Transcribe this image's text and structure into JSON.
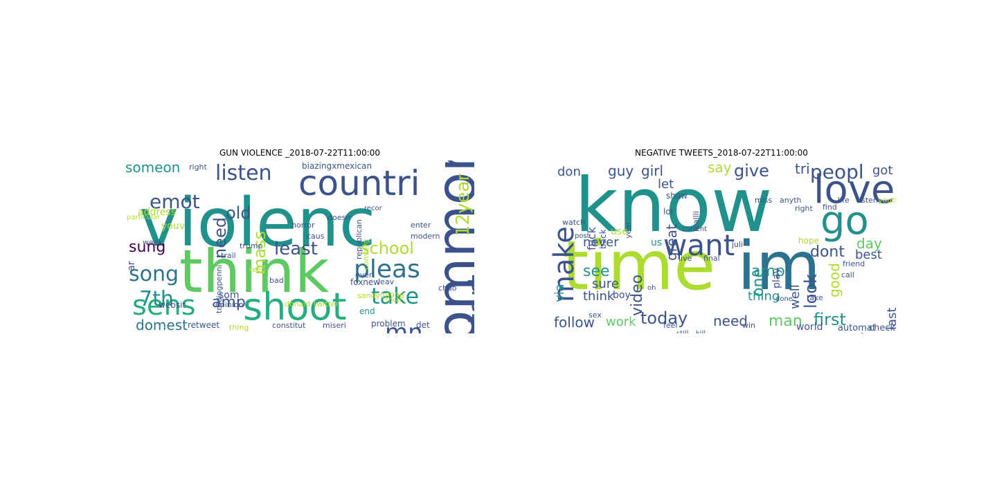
{
  "panels": [
    {
      "title": "GUN VIOLENCE _2018-07-22T11:00:00",
      "words": [
        {
          "t": "violenc",
          "c": "#21918c"
        },
        {
          "t": "think",
          "c": "#5ec962"
        },
        {
          "t": "countri",
          "c": "#3b528b"
        },
        {
          "t": "shoot",
          "c": "#27ad81"
        },
        {
          "t": "sens",
          "c": "#27ad81"
        },
        {
          "t": "common",
          "c": "#3b528b"
        },
        {
          "t": "pleas",
          "c": "#2c728e"
        },
        {
          "t": "take",
          "c": "#21918c"
        },
        {
          "t": "mn",
          "c": "#3b528b"
        },
        {
          "t": "listen",
          "c": "#3b528b"
        },
        {
          "t": "emot",
          "c": "#3b528b"
        },
        {
          "t": "song",
          "c": "#2c728e"
        },
        {
          "t": "school",
          "c": "#addc30"
        },
        {
          "t": "start",
          "c": "#3b528b"
        },
        {
          "t": "12year",
          "c": "#addc30"
        },
        {
          "t": "least",
          "c": "#3b528b"
        },
        {
          "t": "7th",
          "c": "#21918c"
        },
        {
          "t": "amp",
          "c": "#3b528b"
        },
        {
          "t": "sung",
          "c": "#440154"
        },
        {
          "t": "someon",
          "c": "#21918c"
        },
        {
          "t": "old",
          "c": "#3b528b"
        },
        {
          "t": "need",
          "c": "#3b528b"
        },
        {
          "t": "mass",
          "c": "#addc30"
        },
        {
          "t": "domest",
          "c": "#2c728e"
        },
        {
          "t": "address",
          "c": "#addc30"
        },
        {
          "t": "youv",
          "c": "#addc30"
        },
        {
          "t": "biazingxmexican",
          "c": "#3b528b"
        },
        {
          "t": "foxnew",
          "c": "#3b528b"
        },
        {
          "t": "leav",
          "c": "#3b528b"
        },
        {
          "t": "right",
          "c": "#3b528b"
        },
        {
          "t": "trump",
          "c": "#3b528b"
        },
        {
          "t": "problem",
          "c": "#3b528b"
        },
        {
          "t": "det",
          "c": "#3b528b"
        },
        {
          "t": "end",
          "c": "#21918c"
        },
        {
          "t": "som",
          "c": "#3b528b"
        },
        {
          "t": "websit",
          "c": "#3b528b"
        },
        {
          "t": "retweet",
          "c": "#3b528b"
        },
        {
          "t": "constitut",
          "c": "#3b528b"
        },
        {
          "t": "miseri",
          "c": "#3b528b"
        },
        {
          "t": "thing",
          "c": "#addc30"
        },
        {
          "t": "donald",
          "c": "#addc30"
        },
        {
          "t": "twitter",
          "c": "#addc30"
        },
        {
          "t": "opinion",
          "c": "#3b528b"
        },
        {
          "t": "republican",
          "c": "#3b528b"
        },
        {
          "t": "modern",
          "c": "#3b528b"
        },
        {
          "t": "doesn",
          "c": "#3b528b"
        },
        {
          "t": "horror",
          "c": "#3b528b"
        },
        {
          "t": "caus",
          "c": "#3b528b"
        },
        {
          "t": "trail",
          "c": "#3b528b"
        },
        {
          "t": "everi",
          "c": "#3b528b"
        },
        {
          "t": "enter",
          "c": "#3b528b"
        },
        {
          "t": "sandy08906",
          "c": "#addc30"
        },
        {
          "t": "chao",
          "c": "#3b528b"
        },
        {
          "t": "week",
          "c": "#3b528b"
        },
        {
          "t": "tradingpenni",
          "c": "#3b528b"
        },
        {
          "t": "bad",
          "c": "#3b528b"
        },
        {
          "t": "keep",
          "c": "#addc30"
        },
        {
          "t": "recor",
          "c": "#3b528b"
        },
        {
          "t": "soon",
          "c": "#addc30"
        },
        {
          "t": "ar",
          "c": "#3b528b"
        },
        {
          "t": "converg",
          "c": "#addc30"
        },
        {
          "t": "particular",
          "c": "#addc30"
        }
      ]
    },
    {
      "title": "NEGATIVE TWEETS_2018-07-22T11:00:00",
      "words": [
        {
          "t": "know",
          "c": "#21918c"
        },
        {
          "t": "time",
          "c": "#addc30"
        },
        {
          "t": "im",
          "c": "#2c728e"
        },
        {
          "t": "love",
          "c": "#3b528b"
        },
        {
          "t": "go",
          "c": "#21918c"
        },
        {
          "t": "want",
          "c": "#3b528b"
        },
        {
          "t": "new",
          "c": "#3b528b"
        },
        {
          "t": "make",
          "c": "#3b528b"
        },
        {
          "t": "peopl",
          "c": "#3b528b"
        },
        {
          "t": "look",
          "c": "#3b528b"
        },
        {
          "t": "give",
          "c": "#3b528b"
        },
        {
          "t": "video",
          "c": "#3b528b"
        },
        {
          "t": "today",
          "c": "#3b528b"
        },
        {
          "t": "follow",
          "c": "#3b528b"
        },
        {
          "t": "first",
          "c": "#21918c"
        },
        {
          "t": "amp",
          "c": "#21918c"
        },
        {
          "t": "dont",
          "c": "#3b528b"
        },
        {
          "t": "man",
          "c": "#5ec962"
        },
        {
          "t": "need",
          "c": "#3b528b"
        },
        {
          "t": "day",
          "c": "#5ec962"
        },
        {
          "t": "good",
          "c": "#addc30"
        },
        {
          "t": "best",
          "c": "#3b528b"
        },
        {
          "t": "last",
          "c": "#3b528b"
        },
        {
          "t": "guy",
          "c": "#3b528b"
        },
        {
          "t": "girl",
          "c": "#3b528b"
        },
        {
          "t": "say",
          "c": "#addc30"
        },
        {
          "t": "tri",
          "c": "#3b528b"
        },
        {
          "t": "got",
          "c": "#3b528b"
        },
        {
          "t": "don",
          "c": "#3b528b"
        },
        {
          "t": "let",
          "c": "#3b528b"
        },
        {
          "t": "fuck",
          "c": "#3b528b"
        },
        {
          "t": "great",
          "c": "#3b528b"
        },
        {
          "t": "one",
          "c": "#21918c"
        },
        {
          "t": "never",
          "c": "#3b528b"
        },
        {
          "t": "see",
          "c": "#21918c"
        },
        {
          "t": "sure",
          "c": "#3b528b"
        },
        {
          "t": "think",
          "c": "#3b528b"
        },
        {
          "t": "via",
          "c": "#21918c"
        },
        {
          "t": "work",
          "c": "#5ec962"
        },
        {
          "t": "thing",
          "c": "#21918c"
        },
        {
          "t": "well",
          "c": "#3b528b"
        },
        {
          "t": "play",
          "c": "#3b528b"
        },
        {
          "t": "world",
          "c": "#3b528b"
        },
        {
          "t": "automat",
          "c": "#3b528b"
        },
        {
          "t": "check",
          "c": "#3b528b"
        },
        {
          "t": "boy",
          "c": "#3b528b"
        },
        {
          "t": "use",
          "c": "#addc30"
        },
        {
          "t": "show",
          "c": "#3b528b"
        },
        {
          "t": "lol",
          "c": "#3b528b"
        },
        {
          "t": "us",
          "c": "#21918c"
        },
        {
          "t": "feel",
          "c": "#3b528b"
        },
        {
          "t": "hope",
          "c": "#addc30"
        },
        {
          "t": "back",
          "c": "#3b528b"
        },
        {
          "t": "year",
          "c": "#3b528b"
        },
        {
          "t": "reallli",
          "c": "#3b528b"
        },
        {
          "t": "watch",
          "c": "#3b528b"
        },
        {
          "t": "post",
          "c": "#3b528b"
        },
        {
          "t": "miss",
          "c": "#3b528b"
        },
        {
          "t": "anyth",
          "c": "#3b528b"
        },
        {
          "t": "life",
          "c": "#3b528b"
        },
        {
          "t": "listen",
          "c": "#3b528b"
        },
        {
          "t": "youtub",
          "c": "#addc30"
        },
        {
          "t": "live",
          "c": "#3b528b"
        },
        {
          "t": "final",
          "c": "#3b528b"
        },
        {
          "t": "still",
          "c": "#3b528b"
        },
        {
          "t": "kill",
          "c": "#3b528b"
        },
        {
          "t": "call",
          "c": "#3b528b"
        },
        {
          "t": "take",
          "c": "#3b528b"
        },
        {
          "t": "juli",
          "c": "#3b528b"
        },
        {
          "t": "right",
          "c": "#3b528b"
        },
        {
          "t": "find",
          "c": "#3b528b"
        },
        {
          "t": "friend",
          "c": "#3b528b"
        },
        {
          "t": "oh",
          "c": "#3b528b"
        },
        {
          "t": "sex",
          "c": "#3b528b"
        },
        {
          "t": "done",
          "c": "#3b528b"
        },
        {
          "t": "win",
          "c": "#3b528b"
        },
        {
          "t": "current",
          "c": "#3b528b"
        },
        {
          "t": "anyon",
          "c": "#3b528b"
        },
        {
          "t": "much",
          "c": "#3b528b"
        }
      ]
    }
  ]
}
